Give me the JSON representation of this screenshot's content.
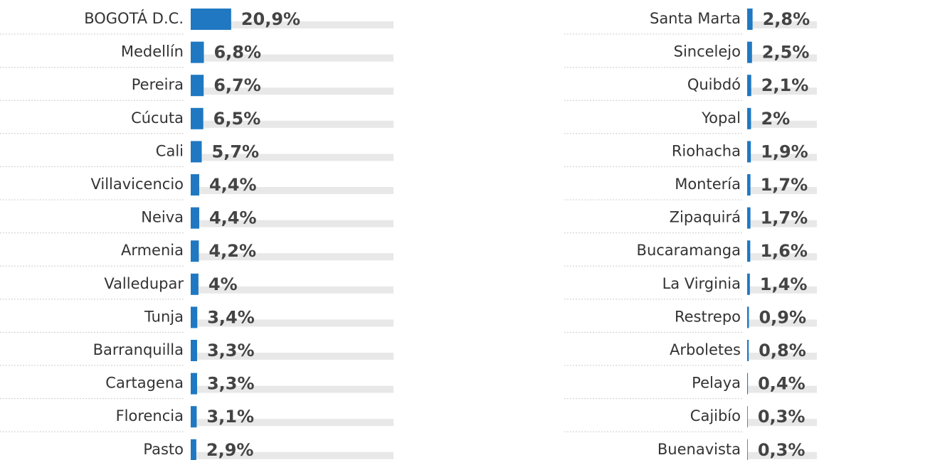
{
  "chart_data": [
    {
      "type": "bar",
      "color": "#1f78c1",
      "categories": [
        "BOGOTÁ D.C.",
        "Medellín",
        "Pereira",
        "Cúcuta",
        "Cali",
        "Villavicencio",
        "Neiva",
        "Armenia",
        "Valledupar",
        "Tunja",
        "Barranquilla",
        "Cartagena",
        "Florencia",
        "Pasto"
      ],
      "values": [
        20.9,
        6.8,
        6.7,
        6.5,
        5.7,
        4.4,
        4.4,
        4.2,
        4,
        3.4,
        3.3,
        3.3,
        3.1,
        2.9
      ],
      "value_labels": [
        "20,9%",
        "6,8%",
        "6,7%",
        "6,5%",
        "5,7%",
        "4,4%",
        "4,4%",
        "4,2%",
        "4%",
        "3,4%",
        "3,3%",
        "3,3%",
        "3,1%",
        "2,9%"
      ]
    },
    {
      "type": "bar",
      "color": "#1f78c1",
      "categories": [
        "Santa Marta",
        "Sincelejo",
        "Quibdó",
        "Yopal",
        "Riohacha",
        "Montería",
        "Zipaquirá",
        "Bucaramanga",
        "La Virginia",
        "Restrepo",
        "Arboletes",
        "Pelaya",
        "Cajibío",
        "Buenavista"
      ],
      "values": [
        2.8,
        2.5,
        2.1,
        2,
        1.9,
        1.7,
        1.7,
        1.6,
        1.4,
        0.9,
        0.8,
        0.4,
        0.3,
        0.3
      ],
      "value_labels": [
        "2,8%",
        "2,5%",
        "2,1%",
        "2%",
        "1,9%",
        "1,7%",
        "1,7%",
        "1,6%",
        "1,4%",
        "0,9%",
        "0,8%",
        "0,4%",
        "0,3%",
        "0,3%"
      ]
    }
  ]
}
